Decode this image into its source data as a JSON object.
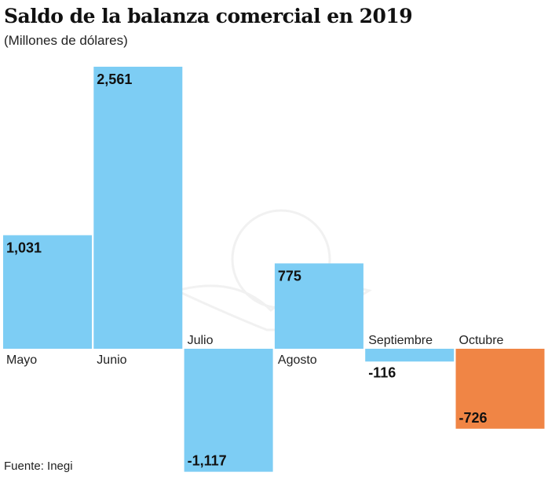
{
  "chart_data": {
    "type": "bar",
    "title": "Saldo de la balanza comercial en 2019",
    "subtitle": "(Millones de dólares)",
    "source": "Fuente: Inegi",
    "categories": [
      "Mayo",
      "Junio",
      "Julio",
      "Agosto",
      "Septiembre",
      "Octubre"
    ],
    "values": [
      1031,
      2561,
      -1117,
      775,
      -116,
      -726
    ],
    "value_labels": [
      "1,031",
      "2,561",
      "-1,117",
      "775",
      "-116",
      "-726"
    ],
    "colors": [
      "#7dcdf4",
      "#7dcdf4",
      "#7dcdf4",
      "#7dcdf4",
      "#7dcdf4",
      "#f08545"
    ],
    "grid": false,
    "legend": "none"
  }
}
